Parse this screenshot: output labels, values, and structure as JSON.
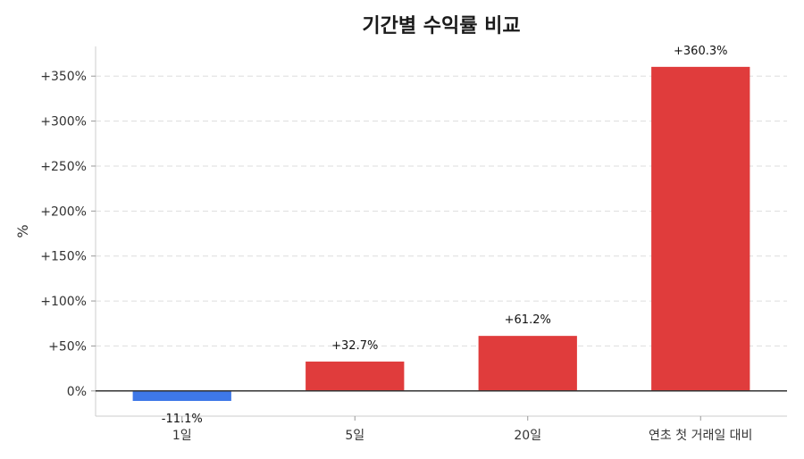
{
  "chart_data": {
    "type": "bar",
    "title": "기간별 수익률 비교",
    "ylabel": "%",
    "xlabel": "",
    "categories": [
      "1일",
      "5일",
      "20일",
      "연초 첫 거래일 대비"
    ],
    "values": [
      -11.1,
      32.7,
      61.2,
      360.3
    ],
    "value_labels": [
      "-11.1%",
      "+32.7%",
      "+61.2%",
      "+360.3%"
    ],
    "ylim": [
      -28,
      383
    ],
    "yticks": [
      0,
      50,
      100,
      150,
      200,
      250,
      300,
      350
    ],
    "ytick_labels": [
      "0%",
      "+50%",
      "+100%",
      "+150%",
      "+200%",
      "+250%",
      "+300%",
      "+350%"
    ],
    "grid": true,
    "legend": "none",
    "colors": {
      "positive": "#e03c3c",
      "negative": "#3e78e8",
      "grid": "#dddddd",
      "zero_line": "#333333",
      "axis": "#cccccc"
    }
  }
}
